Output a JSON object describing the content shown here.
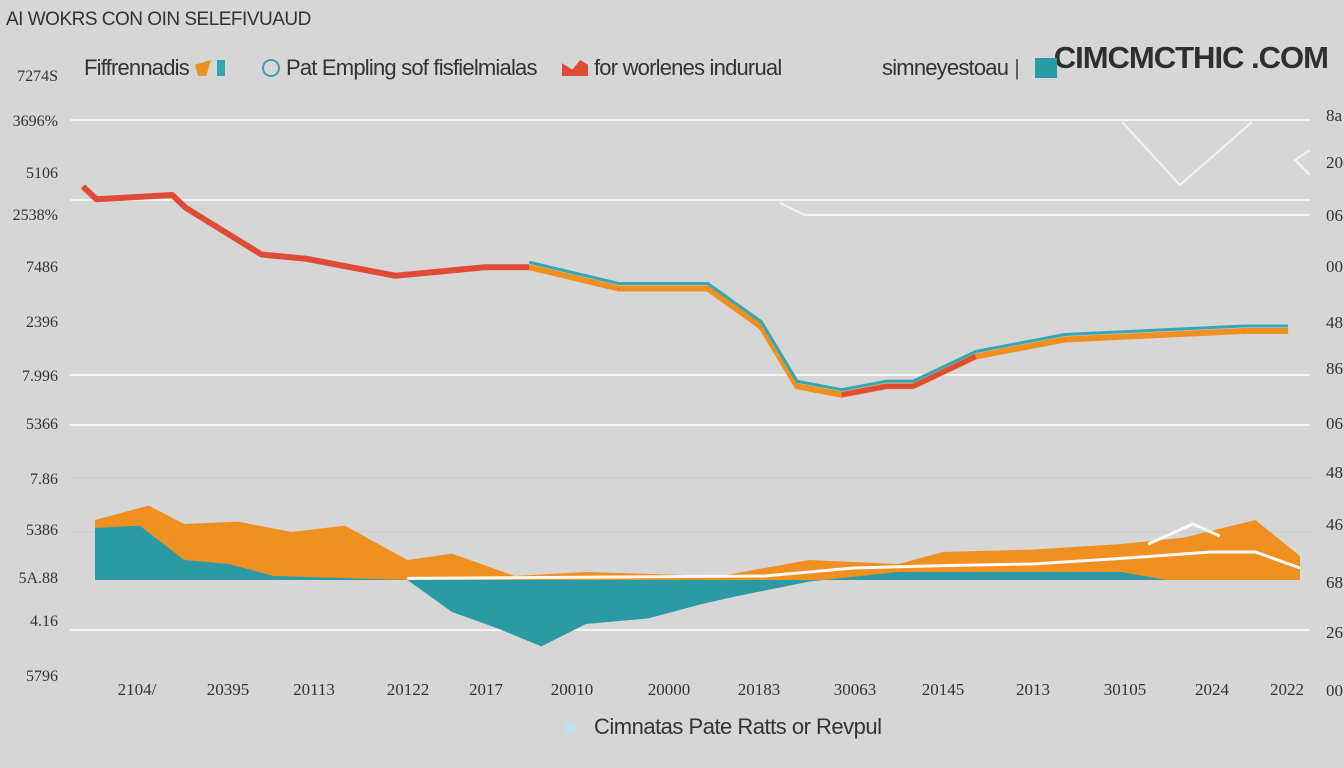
{
  "page_title": "AI WOKRS CON OIN SELEFIVUAUD",
  "brand": "CIMCMCTHIC .COM",
  "legend": [
    {
      "label": "Fiffrennadis",
      "color": "#ef9020",
      "accent": "#35a6b4"
    },
    {
      "label": "Pat Empling sof fisfielmialas",
      "color": "#ef9020",
      "icon": "circle-icon"
    },
    {
      "label": "for worlenes indurual",
      "color": "#df4b36"
    },
    {
      "label": "simneyestoau",
      "color": "#2a9aa5"
    }
  ],
  "caption": "Cimnatas Pate Ratts or Revpul",
  "chart_data": {
    "type": "line",
    "title": "AI WOKRS CON OIN SELEFIVUAUD",
    "x_ticks": [
      "2104/",
      "20395",
      "20113",
      "20122",
      "2017",
      "20010",
      "20000",
      "20183",
      "30063",
      "20145",
      "2013",
      "30105",
      "2024",
      "2022"
    ],
    "y_ticks_left": [
      "7274S",
      "3696%",
      "5106",
      "2538%",
      "7486",
      "2396",
      "7.996",
      "5366",
      "7.86",
      "5386",
      "5A.88",
      "4.16",
      "5796"
    ],
    "y_ticks_right": [
      "8a",
      "206",
      "06",
      "00",
      "48",
      "86",
      "06",
      "48",
      "46",
      "68",
      "26",
      "00"
    ],
    "grid": true,
    "legend_position": "top",
    "series": [
      {
        "name": "for worlenes indurual",
        "color": "#df4b36",
        "x": [
          0,
          0.15,
          1,
          1.15,
          2,
          2.5,
          3,
          3.5,
          4,
          4.5,
          5,
          6,
          7,
          7.6,
          8,
          8.5,
          9,
          9.3,
          10,
          11,
          12,
          13,
          13.5
        ],
        "y": [
          5.1,
          4.95,
          5.0,
          4.85,
          4.3,
          4.25,
          4.15,
          4.05,
          4.1,
          4.15,
          4.15,
          3.9,
          3.9,
          3.45,
          2.75,
          2.65,
          2.75,
          2.75,
          3.1,
          3.3,
          3.35,
          3.4,
          3.4
        ]
      }
    ]
  }
}
